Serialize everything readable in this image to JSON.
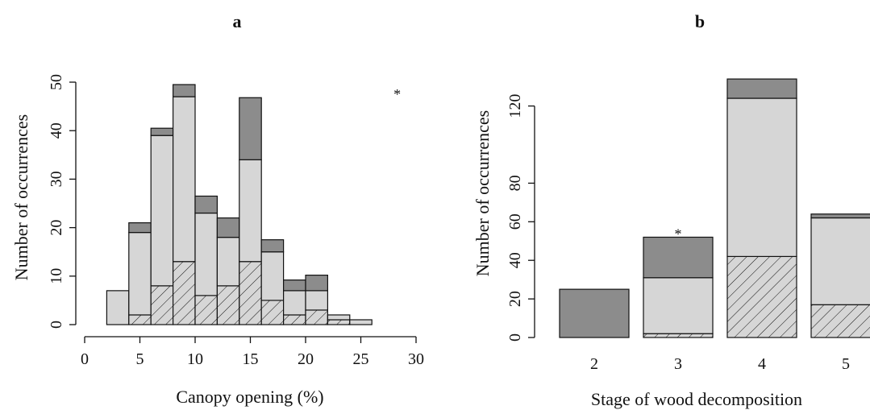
{
  "colors": {
    "dark": "#8c8c8c",
    "light": "#d6d6d6",
    "hatch_bg": "#d6d6d6",
    "stroke": "#111111"
  },
  "chart_data": [
    {
      "id": "a",
      "type": "bar",
      "stacked": true,
      "title": "a",
      "xlabel": "Canopy opening (%)",
      "ylabel": "Number of occurrences",
      "xlim": [
        0,
        30
      ],
      "ylim": [
        0,
        50
      ],
      "xticks": [
        "0",
        "5",
        "10",
        "15",
        "20",
        "25",
        "30"
      ],
      "yticks": [
        "0",
        "10",
        "20",
        "30",
        "40",
        "50"
      ],
      "bin_edges": [
        2,
        4,
        6,
        8,
        10,
        12,
        14,
        16,
        18,
        20,
        22,
        24,
        26
      ],
      "series": [
        {
          "pattern": "hatch",
          "values": [
            0,
            2,
            8,
            13,
            6,
            8,
            13,
            5,
            2,
            3,
            1,
            0
          ]
        },
        {
          "pattern": "light",
          "values": [
            7,
            17,
            31,
            34,
            17,
            10,
            21,
            10,
            5,
            4,
            1,
            1
          ]
        },
        {
          "pattern": "dark",
          "values": [
            0,
            2,
            1.5,
            2.5,
            3.5,
            4,
            12.8,
            2.5,
            2.2,
            3.2,
            0,
            0
          ]
        }
      ],
      "annotations": [
        {
          "text": "*",
          "x": 28,
          "y": 48
        }
      ],
      "grid": false,
      "legend": "none"
    },
    {
      "id": "b",
      "type": "bar",
      "stacked": true,
      "title": "b",
      "xlabel": "Stage of wood decomposition",
      "ylabel": "Number of occurrences",
      "categories": [
        "2",
        "3",
        "4",
        "5"
      ],
      "ylim": [
        0,
        140
      ],
      "yticks": [
        "0",
        "20",
        "40",
        "60",
        "80",
        "120"
      ],
      "series": [
        {
          "pattern": "hatch",
          "values": [
            0,
            2,
            42,
            17
          ]
        },
        {
          "pattern": "light",
          "values": [
            0,
            29,
            82,
            45
          ]
        },
        {
          "pattern": "dark",
          "values": [
            25,
            21,
            10,
            2
          ]
        }
      ],
      "annotations": [
        {
          "text": "*",
          "category": "3",
          "y": 60
        }
      ],
      "grid": false,
      "legend": "none"
    }
  ]
}
